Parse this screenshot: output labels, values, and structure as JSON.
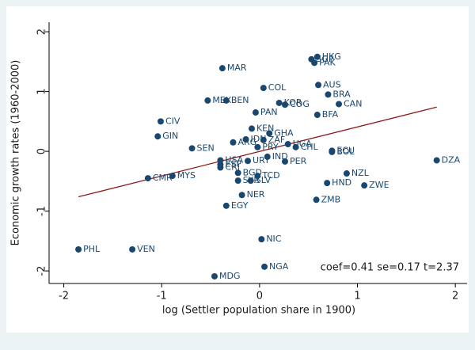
{
  "chart_data": {
    "type": "scatter",
    "x_label": "log (Settler population share in 1900)",
    "y_label": "Economic growth rates (1960-2000)",
    "annotation": "coef=0.41  se=0.17  t=2.37",
    "color": "#1a476f",
    "fit_color": "#8b1a1a",
    "xlim": [
      -2.15,
      2.12
    ],
    "ylim": [
      -2.21,
      2.16
    ],
    "xticks": [
      -2,
      -1,
      0,
      1,
      2
    ],
    "yticks": [
      -2,
      -1,
      0,
      1,
      2
    ],
    "labels": [
      "PHL",
      "VEN",
      "CMR",
      "MYS",
      "CIV",
      "GIN",
      "SEN",
      "MAR",
      "MEX",
      "BEN",
      "COL",
      "PAN",
      "KEN",
      "GHA",
      "IDN",
      "ZAF",
      "ARG",
      "PRY",
      "IND",
      "PER",
      "USA",
      "ESP",
      "CRI",
      "URY",
      "BGD",
      "SYR",
      "SLV",
      "TCD",
      "NER",
      "EGY",
      "NIC",
      "NGA",
      "MDG",
      "KOR",
      "COG",
      "AUS",
      "BRA",
      "CAN",
      "BFA",
      "HKG",
      "SGP",
      "PAK",
      "NZL",
      "HND",
      "ZWE",
      "ZMB",
      "ECU",
      "BOL",
      "DZA",
      "UGA",
      "CHL"
    ],
    "x": [
      -1.85,
      -1.3,
      -1.14,
      -0.89,
      -1.01,
      -1.04,
      -0.69,
      -0.38,
      -0.53,
      -0.34,
      0.04,
      -0.04,
      -0.08,
      0.1,
      -0.14,
      0.04,
      -0.27,
      -0.02,
      0.08,
      0.26,
      -0.4,
      -0.4,
      -0.4,
      -0.12,
      -0.22,
      -0.22,
      -0.09,
      -0.02,
      -0.18,
      -0.34,
      0.02,
      0.05,
      -0.46,
      0.2,
      0.26,
      0.6,
      0.7,
      0.81,
      0.59,
      0.59,
      0.53,
      0.56,
      0.89,
      0.69,
      1.07,
      0.58,
      0.74,
      0.74,
      1.81,
      0.29,
      0.37
    ],
    "y": [
      -1.64,
      -1.64,
      -0.45,
      -0.41,
      0.5,
      0.25,
      0.05,
      1.39,
      0.85,
      0.85,
      1.06,
      0.65,
      0.38,
      0.3,
      0.2,
      0.19,
      0.15,
      0.07,
      -0.09,
      -0.17,
      -0.15,
      -0.22,
      -0.27,
      -0.16,
      -0.36,
      -0.49,
      -0.49,
      -0.41,
      -0.73,
      -0.91,
      -1.47,
      -1.93,
      -2.09,
      0.81,
      0.78,
      1.11,
      0.95,
      0.79,
      0.61,
      1.58,
      1.54,
      1.48,
      -0.37,
      -0.53,
      -0.57,
      -0.81,
      0.01,
      -0.01,
      -0.15,
      0.12,
      0.07
    ],
    "fit_line": {
      "x": [
        -1.85,
        1.81
      ],
      "y": [
        -0.76,
        0.74
      ]
    }
  }
}
